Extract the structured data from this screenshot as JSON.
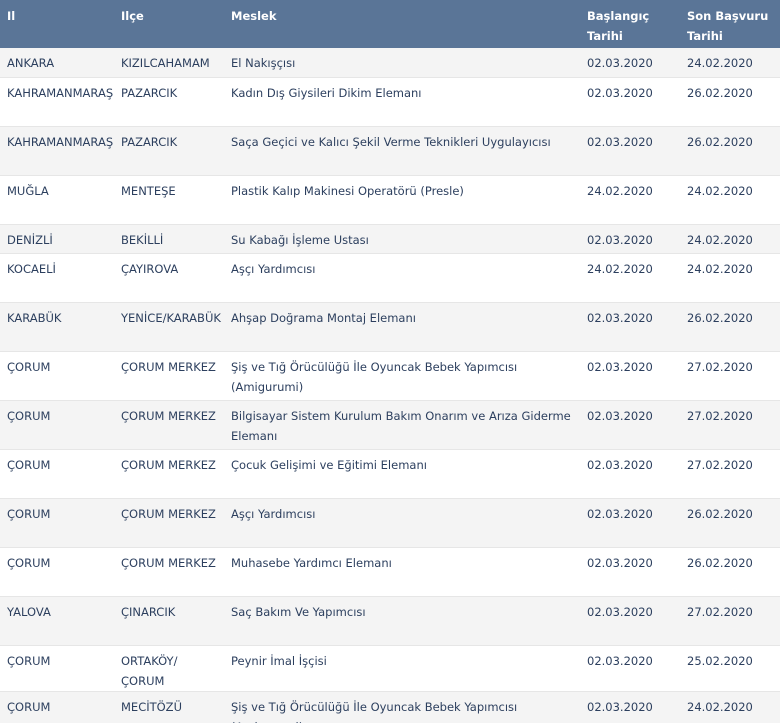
{
  "table": {
    "headers": {
      "il": "Il",
      "ilce": "Ilçe",
      "meslek": "Meslek",
      "baslangic": "Başlangıç Tarihi",
      "son_basvuru": "Son Başvuru Tarihi"
    },
    "rows": [
      {
        "il": "ANKARA",
        "ilce": "KIZILCAHAMAM",
        "meslek": "El Nakışçısı",
        "baslangic": "02.03.2020",
        "son": "24.02.2020"
      },
      {
        "il": "KAHRAMANMARAŞ",
        "ilce": "PAZARCIK",
        "meslek": "Kadın Dış Giysileri Dikim Elemanı",
        "baslangic": "02.03.2020",
        "son": "26.02.2020"
      },
      {
        "il": "KAHRAMANMARAŞ",
        "ilce": "PAZARCIK",
        "meslek": "Saça Geçici ve Kalıcı Şekil Verme Teknikleri Uygulayıcısı",
        "baslangic": "02.03.2020",
        "son": "26.02.2020"
      },
      {
        "il": "MUĞLA",
        "ilce": "MENTEŞE",
        "meslek": "Plastik Kalıp Makinesi Operatörü (Presle)",
        "baslangic": "24.02.2020",
        "son": "24.02.2020"
      },
      {
        "il": "DENİZLİ",
        "ilce": "BEKİLLİ",
        "meslek": "Su Kabağı İşleme Ustası",
        "baslangic": "02.03.2020",
        "son": "24.02.2020"
      },
      {
        "il": "KOCAELİ",
        "ilce": "ÇAYIROVA",
        "meslek": "Aşçı Yardımcısı",
        "baslangic": "24.02.2020",
        "son": "24.02.2020"
      },
      {
        "il": "KARABÜK",
        "ilce": "YENİCE/KARABÜK",
        "meslek": "Ahşap Doğrama Montaj Elemanı",
        "baslangic": "02.03.2020",
        "son": "26.02.2020"
      },
      {
        "il": "ÇORUM",
        "ilce": "ÇORUM MERKEZ",
        "meslek": "Şiş ve Tığ Örücülüğü İle Oyuncak Bebek Yapımcısı (Amigurumi)",
        "baslangic": "02.03.2020",
        "son": "27.02.2020"
      },
      {
        "il": "ÇORUM",
        "ilce": "ÇORUM MERKEZ",
        "meslek": "Bilgisayar Sistem Kurulum Bakım Onarım ve Arıza Giderme Elemanı",
        "baslangic": "02.03.2020",
        "son": "27.02.2020"
      },
      {
        "il": "ÇORUM",
        "ilce": "ÇORUM MERKEZ",
        "meslek": "Çocuk Gelişimi ve Eğitimi Elemanı",
        "baslangic": "02.03.2020",
        "son": "27.02.2020"
      },
      {
        "il": "ÇORUM",
        "ilce": "ÇORUM MERKEZ",
        "meslek": "Aşçı Yardımcısı",
        "baslangic": "02.03.2020",
        "son": "26.02.2020"
      },
      {
        "il": "ÇORUM",
        "ilce": "ÇORUM MERKEZ",
        "meslek": "Muhasebe Yardımcı Elemanı",
        "baslangic": "02.03.2020",
        "son": "26.02.2020"
      },
      {
        "il": "YALOVA",
        "ilce": "ÇINARCIK",
        "meslek": "Saç Bakım Ve Yapımcısı",
        "baslangic": "02.03.2020",
        "son": "27.02.2020"
      },
      {
        "il": "ÇORUM",
        "ilce": "ORTAKÖY/ÇORUM",
        "meslek": "Peynir İmal İşçisi",
        "baslangic": "02.03.2020",
        "son": "25.02.2020"
      },
      {
        "il": "ÇORUM",
        "ilce": "MECİTÖZÜ",
        "meslek": "Şiş ve Tığ Örücülüğü İle Oyuncak Bebek Yapımcısı (Amigurumi)",
        "baslangic": "02.03.2020",
        "son": "24.02.2020"
      }
    ]
  }
}
